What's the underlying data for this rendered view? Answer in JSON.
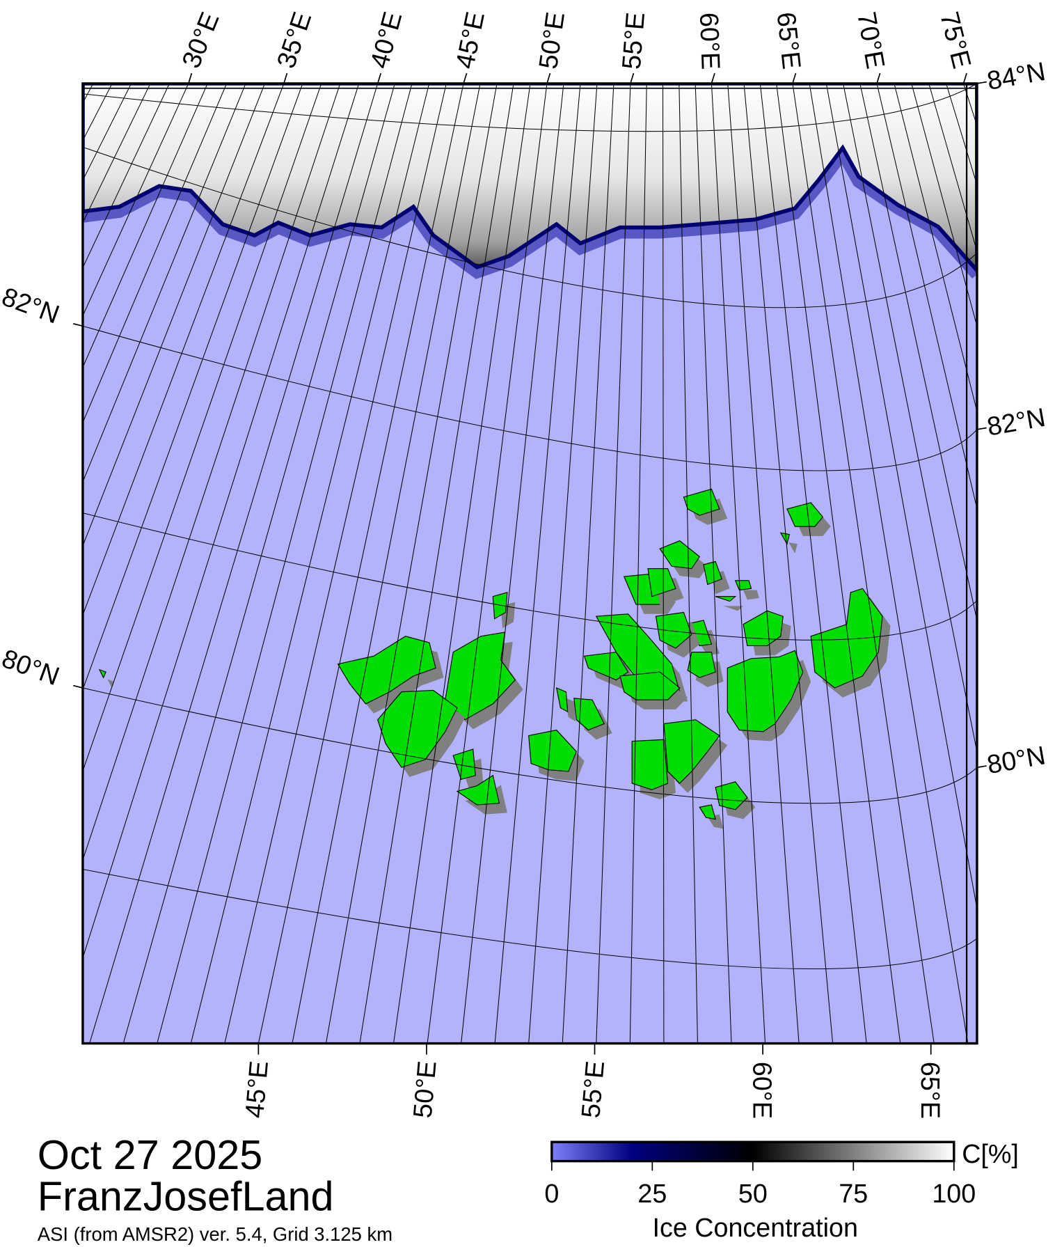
{
  "title": {
    "date": "Oct 27 2025",
    "region": "FranzJosefLand",
    "source": "ASI (from AMSR2) ver. 5.4,  Grid 3.125 km"
  },
  "colorbar": {
    "unit": "C[%]",
    "label": "Ice Concentration",
    "ticks": [
      "0",
      "25",
      "50",
      "75",
      "100"
    ],
    "range": [
      0,
      100
    ],
    "stops": [
      {
        "value": 0,
        "color": "#7f7ff8"
      },
      {
        "value": 20,
        "color": "#000080"
      },
      {
        "value": 50,
        "color": "#000000"
      },
      {
        "value": 75,
        "color": "#808080"
      },
      {
        "value": 100,
        "color": "#ffffff"
      }
    ]
  },
  "colors": {
    "water": "#b3b3fb",
    "land": "#00dd00",
    "land_shadow": "#808080",
    "ice_edge": "#000070"
  },
  "graticule": {
    "top_lon_labels": [
      "30°E",
      "35°E",
      "40°E",
      "45°E",
      "50°E",
      "55°E",
      "60°E",
      "65°E",
      "70°E",
      "75°E"
    ],
    "bottom_lon_labels": [
      "45°E",
      "50°E",
      "55°E",
      "60°E",
      "65°E"
    ],
    "left_lat_labels": [
      "82°N",
      "80°N"
    ],
    "right_lat_labels": [
      "84°N",
      "82°N",
      "80°N"
    ],
    "meridian_spacing_deg": 1
  }
}
